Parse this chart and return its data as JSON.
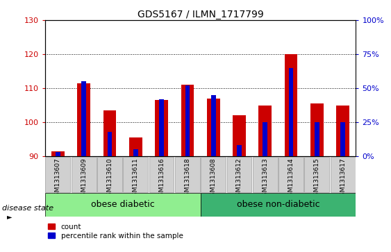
{
  "title": "GDS5167 / ILMN_1717799",
  "samples": [
    "GSM1313607",
    "GSM1313609",
    "GSM1313610",
    "GSM1313611",
    "GSM1313616",
    "GSM1313618",
    "GSM1313608",
    "GSM1313612",
    "GSM1313613",
    "GSM1313614",
    "GSM1313615",
    "GSM1313617"
  ],
  "count_values": [
    91.5,
    111.5,
    103.5,
    95.5,
    106.5,
    111.0,
    107.0,
    102.0,
    105.0,
    120.0,
    105.5,
    105.0
  ],
  "percentile_values": [
    3,
    55,
    18,
    5,
    42,
    52,
    45,
    8,
    25,
    65,
    25,
    25
  ],
  "ylim_left": [
    90,
    130
  ],
  "ylim_right": [
    0,
    100
  ],
  "yticks_left": [
    90,
    100,
    110,
    120,
    130
  ],
  "yticks_right": [
    0,
    25,
    50,
    75,
    100
  ],
  "bar_color_red": "#cc0000",
  "bar_color_blue": "#0000cc",
  "red_bar_width": 0.5,
  "blue_bar_width": 0.18,
  "disease_groups": [
    {
      "label": "obese diabetic",
      "start": 0,
      "end": 6,
      "color": "#90ee90"
    },
    {
      "label": "obese non-diabetic",
      "start": 6,
      "end": 12,
      "color": "#3cb371"
    }
  ],
  "disease_state_label": "disease state",
  "legend_items": [
    {
      "label": "count",
      "color": "#cc0000"
    },
    {
      "label": "percentile rank within the sample",
      "color": "#0000cc"
    }
  ],
  "tick_label_color_left": "#cc0000",
  "tick_label_color_right": "#0000cc",
  "background_color": "#ffffff",
  "plot_bg_color": "#ffffff",
  "title_fontsize": 10,
  "tick_fontsize": 8,
  "sample_label_fontsize": 6.5,
  "group_label_fontsize": 9
}
